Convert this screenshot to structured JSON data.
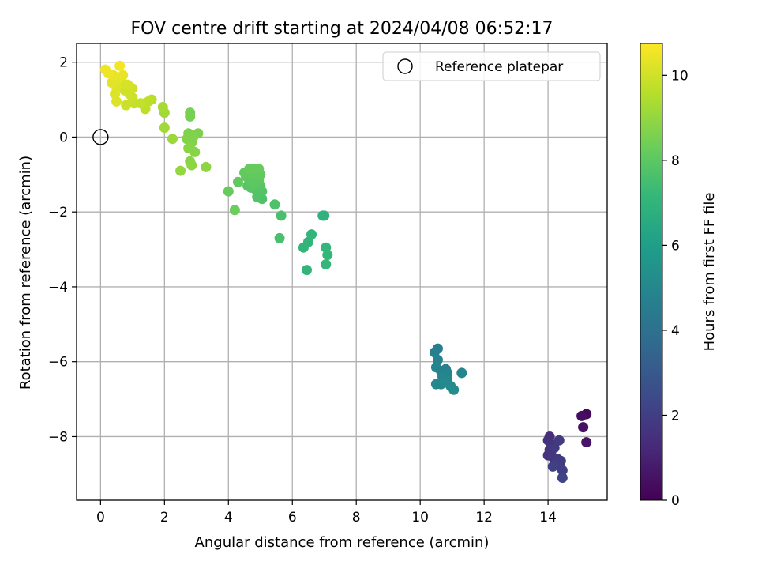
{
  "chart_data": {
    "type": "scatter",
    "title": "FOV centre drift starting at 2024/04/08 06:52:17",
    "xlabel": "Angular distance from reference (arcmin)",
    "ylabel": "Rotation from reference (arcmin)",
    "xlim": [
      -0.75,
      15.85
    ],
    "ylim": [
      -9.7,
      2.5
    ],
    "xticks": [
      0,
      2,
      4,
      6,
      8,
      10,
      12,
      14
    ],
    "yticks": [
      -8,
      -6,
      -4,
      -2,
      0,
      2
    ],
    "grid": true,
    "legend": {
      "placement": "top-right",
      "entries": [
        "Reference platepar"
      ]
    },
    "reference_point": {
      "x": 0,
      "y": 0
    },
    "colorbar": {
      "label": "Hours from first FF file",
      "range": [
        0,
        10.75
      ],
      "ticks": [
        0,
        2,
        4,
        6,
        8,
        10
      ],
      "colormap": "viridis",
      "stops": [
        "#440154",
        "#482878",
        "#3e4989",
        "#31688e",
        "#26828e",
        "#1f9e89",
        "#35b779",
        "#6ece58",
        "#b5de2b",
        "#fde725"
      ]
    },
    "series": [
      {
        "points": [
          {
            "x": 15.2,
            "y": -7.4,
            "c": 0.2
          },
          {
            "x": 15.05,
            "y": -7.45,
            "c": 0.4
          },
          {
            "x": 15.1,
            "y": -7.75,
            "c": 0.5
          },
          {
            "x": 15.2,
            "y": -8.15,
            "c": 0.6
          },
          {
            "x": 14.05,
            "y": -8.0,
            "c": 1.4
          },
          {
            "x": 14.0,
            "y": -8.1,
            "c": 1.5
          },
          {
            "x": 14.1,
            "y": -8.2,
            "c": 1.6
          },
          {
            "x": 14.05,
            "y": -8.35,
            "c": 1.7
          },
          {
            "x": 14.2,
            "y": -8.3,
            "c": 1.8
          },
          {
            "x": 14.35,
            "y": -8.1,
            "c": 1.9
          },
          {
            "x": 14.0,
            "y": -8.5,
            "c": 1.6
          },
          {
            "x": 14.15,
            "y": -8.55,
            "c": 1.7
          },
          {
            "x": 14.3,
            "y": -8.6,
            "c": 1.8
          },
          {
            "x": 14.4,
            "y": -8.65,
            "c": 1.9
          },
          {
            "x": 14.25,
            "y": -8.75,
            "c": 2.0
          },
          {
            "x": 14.15,
            "y": -8.8,
            "c": 2.1
          },
          {
            "x": 14.45,
            "y": -8.9,
            "c": 2.0
          },
          {
            "x": 14.45,
            "y": -9.1,
            "c": 2.2
          },
          {
            "x": 10.55,
            "y": -5.65,
            "c": 4.6
          },
          {
            "x": 10.45,
            "y": -5.75,
            "c": 4.7
          },
          {
            "x": 10.55,
            "y": -5.95,
            "c": 4.8
          },
          {
            "x": 10.5,
            "y": -6.15,
            "c": 4.9
          },
          {
            "x": 10.65,
            "y": -6.25,
            "c": 4.8
          },
          {
            "x": 10.8,
            "y": -6.2,
            "c": 4.7
          },
          {
            "x": 10.85,
            "y": -6.3,
            "c": 4.9
          },
          {
            "x": 10.7,
            "y": -6.4,
            "c": 5.0
          },
          {
            "x": 10.85,
            "y": -6.45,
            "c": 5.0
          },
          {
            "x": 11.3,
            "y": -6.3,
            "c": 4.9
          },
          {
            "x": 10.5,
            "y": -6.6,
            "c": 5.1
          },
          {
            "x": 10.65,
            "y": -6.6,
            "c": 5.0
          },
          {
            "x": 10.75,
            "y": -6.55,
            "c": 5.1
          },
          {
            "x": 10.95,
            "y": -6.65,
            "c": 5.1
          },
          {
            "x": 11.05,
            "y": -6.75,
            "c": 5.2
          },
          {
            "x": 6.95,
            "y": -2.1,
            "c": 6.9
          },
          {
            "x": 7.0,
            "y": -2.1,
            "c": 6.9
          },
          {
            "x": 6.6,
            "y": -2.6,
            "c": 7.0
          },
          {
            "x": 6.5,
            "y": -2.8,
            "c": 7.0
          },
          {
            "x": 6.35,
            "y": -2.95,
            "c": 7.0
          },
          {
            "x": 7.05,
            "y": -2.95,
            "c": 7.1
          },
          {
            "x": 7.1,
            "y": -3.15,
            "c": 7.1
          },
          {
            "x": 7.05,
            "y": -3.4,
            "c": 7.1
          },
          {
            "x": 6.45,
            "y": -3.55,
            "c": 7.0
          },
          {
            "x": 5.65,
            "y": -2.1,
            "c": 7.6
          },
          {
            "x": 5.6,
            "y": -2.7,
            "c": 7.6
          },
          {
            "x": 5.45,
            "y": -1.8,
            "c": 7.7
          },
          {
            "x": 5.05,
            "y": -1.65,
            "c": 7.7
          },
          {
            "x": 4.9,
            "y": -1.6,
            "c": 7.8
          },
          {
            "x": 5.05,
            "y": -1.45,
            "c": 7.8
          },
          {
            "x": 4.85,
            "y": -1.4,
            "c": 7.8
          },
          {
            "x": 4.7,
            "y": -1.35,
            "c": 7.9
          },
          {
            "x": 4.6,
            "y": -1.3,
            "c": 7.9
          },
          {
            "x": 5.0,
            "y": -1.3,
            "c": 7.9
          },
          {
            "x": 4.8,
            "y": -1.25,
            "c": 8.0
          },
          {
            "x": 4.65,
            "y": -1.15,
            "c": 8.0
          },
          {
            "x": 4.95,
            "y": -1.15,
            "c": 8.0
          },
          {
            "x": 4.55,
            "y": -1.05,
            "c": 8.0
          },
          {
            "x": 4.75,
            "y": -1.0,
            "c": 8.1
          },
          {
            "x": 5.0,
            "y": -1.0,
            "c": 8.1
          },
          {
            "x": 4.5,
            "y": -0.95,
            "c": 8.1
          },
          {
            "x": 4.65,
            "y": -0.85,
            "c": 8.2
          },
          {
            "x": 4.8,
            "y": -0.85,
            "c": 8.2
          },
          {
            "x": 4.95,
            "y": -0.85,
            "c": 8.2
          },
          {
            "x": 4.3,
            "y": -1.2,
            "c": 8.1
          },
          {
            "x": 4.0,
            "y": -1.45,
            "c": 8.2
          },
          {
            "x": 4.2,
            "y": -1.95,
            "c": 8.3
          },
          {
            "x": 2.8,
            "y": 0.65,
            "c": 8.5
          },
          {
            "x": 2.8,
            "y": 0.55,
            "c": 8.5
          },
          {
            "x": 2.75,
            "y": 0.1,
            "c": 8.6
          },
          {
            "x": 3.05,
            "y": 0.1,
            "c": 8.6
          },
          {
            "x": 2.9,
            "y": 0.0,
            "c": 8.7
          },
          {
            "x": 2.7,
            "y": -0.05,
            "c": 8.7
          },
          {
            "x": 2.85,
            "y": -0.15,
            "c": 8.7
          },
          {
            "x": 2.75,
            "y": -0.3,
            "c": 8.8
          },
          {
            "x": 2.95,
            "y": -0.4,
            "c": 8.8
          },
          {
            "x": 2.8,
            "y": -0.65,
            "c": 8.8
          },
          {
            "x": 2.85,
            "y": -0.75,
            "c": 8.9
          },
          {
            "x": 3.3,
            "y": -0.8,
            "c": 8.9
          },
          {
            "x": 2.5,
            "y": -0.9,
            "c": 9.0
          },
          {
            "x": 2.25,
            "y": -0.05,
            "c": 9.1
          },
          {
            "x": 2.0,
            "y": 0.25,
            "c": 9.2
          },
          {
            "x": 2.0,
            "y": 0.65,
            "c": 9.2
          },
          {
            "x": 1.95,
            "y": 0.8,
            "c": 9.3
          },
          {
            "x": 1.6,
            "y": 1.0,
            "c": 9.6
          },
          {
            "x": 1.5,
            "y": 0.95,
            "c": 9.7
          },
          {
            "x": 1.4,
            "y": 0.9,
            "c": 9.7
          },
          {
            "x": 1.4,
            "y": 0.75,
            "c": 9.7
          },
          {
            "x": 1.25,
            "y": 0.9,
            "c": 9.8
          },
          {
            "x": 1.05,
            "y": 0.9,
            "c": 9.8
          },
          {
            "x": 0.8,
            "y": 0.85,
            "c": 9.9
          },
          {
            "x": 1.0,
            "y": 1.05,
            "c": 9.9
          },
          {
            "x": 0.9,
            "y": 1.15,
            "c": 10.0
          },
          {
            "x": 0.75,
            "y": 1.25,
            "c": 10.0
          },
          {
            "x": 1.0,
            "y": 1.3,
            "c": 10.0
          },
          {
            "x": 0.85,
            "y": 1.4,
            "c": 10.1
          },
          {
            "x": 0.65,
            "y": 1.45,
            "c": 10.1
          },
          {
            "x": 0.5,
            "y": 1.35,
            "c": 10.2
          },
          {
            "x": 0.45,
            "y": 1.15,
            "c": 10.2
          },
          {
            "x": 0.5,
            "y": 0.95,
            "c": 10.2
          },
          {
            "x": 0.35,
            "y": 1.45,
            "c": 10.3
          },
          {
            "x": 0.55,
            "y": 1.55,
            "c": 10.3
          },
          {
            "x": 0.7,
            "y": 1.65,
            "c": 10.4
          },
          {
            "x": 0.4,
            "y": 1.65,
            "c": 10.4
          },
          {
            "x": 0.25,
            "y": 1.7,
            "c": 10.5
          },
          {
            "x": 0.15,
            "y": 1.8,
            "c": 10.5
          },
          {
            "x": 0.6,
            "y": 1.9,
            "c": 10.6
          }
        ]
      }
    ]
  }
}
